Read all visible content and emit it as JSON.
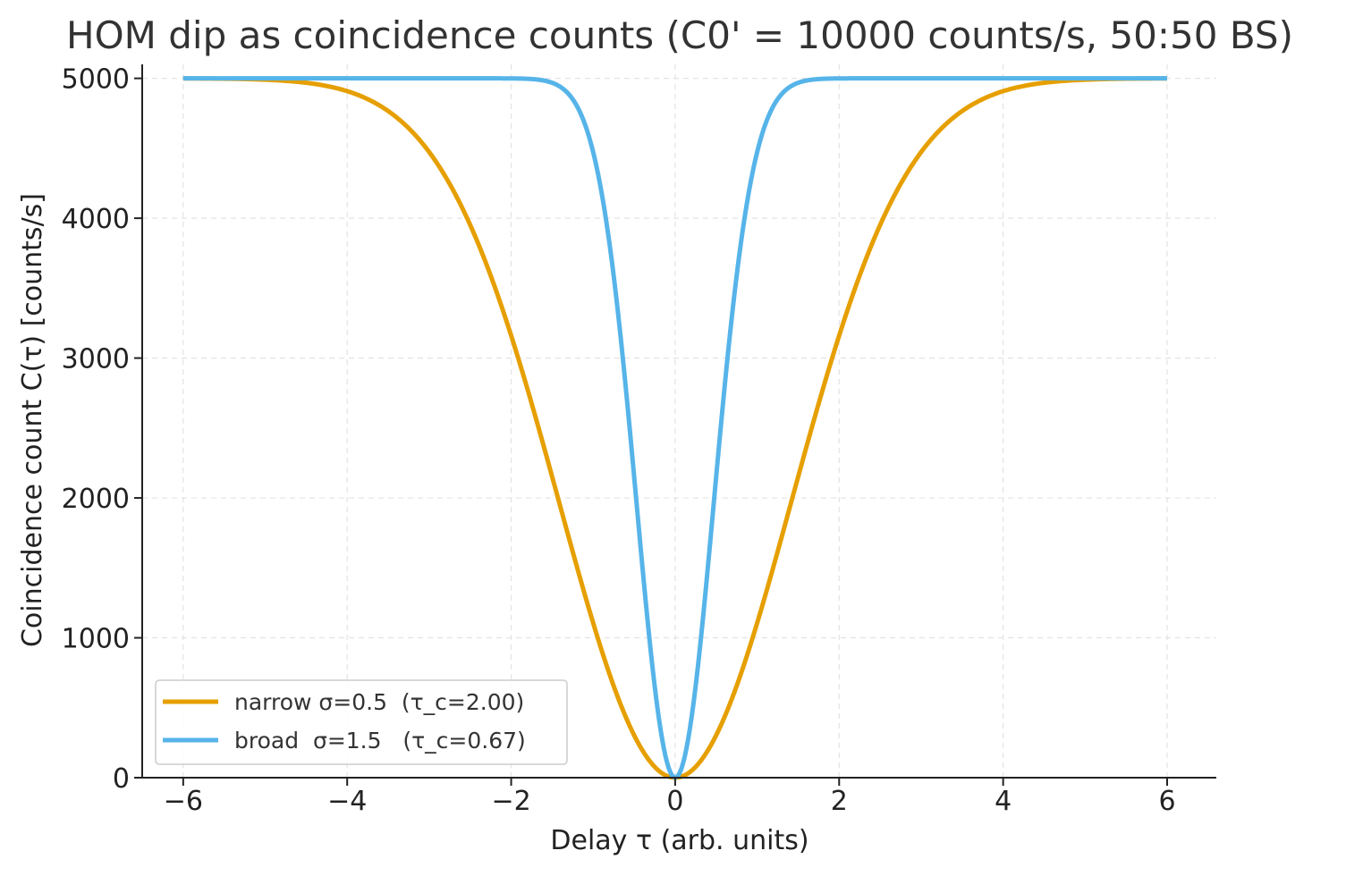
{
  "chart_data": {
    "type": "line",
    "title": "HOM dip as coincidence counts (C0' = 10000 counts/s, 50:50 BS)",
    "xlabel": "Delay τ (arb. units)",
    "ylabel": "Coincidence count C(τ) [counts/s]",
    "xlim": [
      -6.5,
      6.6
    ],
    "ylim": [
      0,
      5100
    ],
    "xticks": [
      -6,
      -4,
      -2,
      0,
      2,
      4,
      6
    ],
    "xtick_labels": [
      "−6",
      "−4",
      "−2",
      "0",
      "2",
      "4",
      "6"
    ],
    "yticks": [
      0,
      1000,
      2000,
      3000,
      4000,
      5000
    ],
    "ytick_labels": [
      "0",
      "1000",
      "2000",
      "3000",
      "4000",
      "5000"
    ],
    "grid": true,
    "legend_position": "lower-left",
    "curve": {
      "baseline": 5000,
      "x_min": -6,
      "x_max": 6,
      "samples": 601
    },
    "series": [
      {
        "name": "narrow σ=0.5  (τ_c=2.00)",
        "color": "#E69F00",
        "coherence_time": 2.0
      },
      {
        "name": "broad  σ=1.5   (τ_c=0.67)",
        "color": "#56B4E9",
        "coherence_time": 0.6667
      }
    ]
  }
}
